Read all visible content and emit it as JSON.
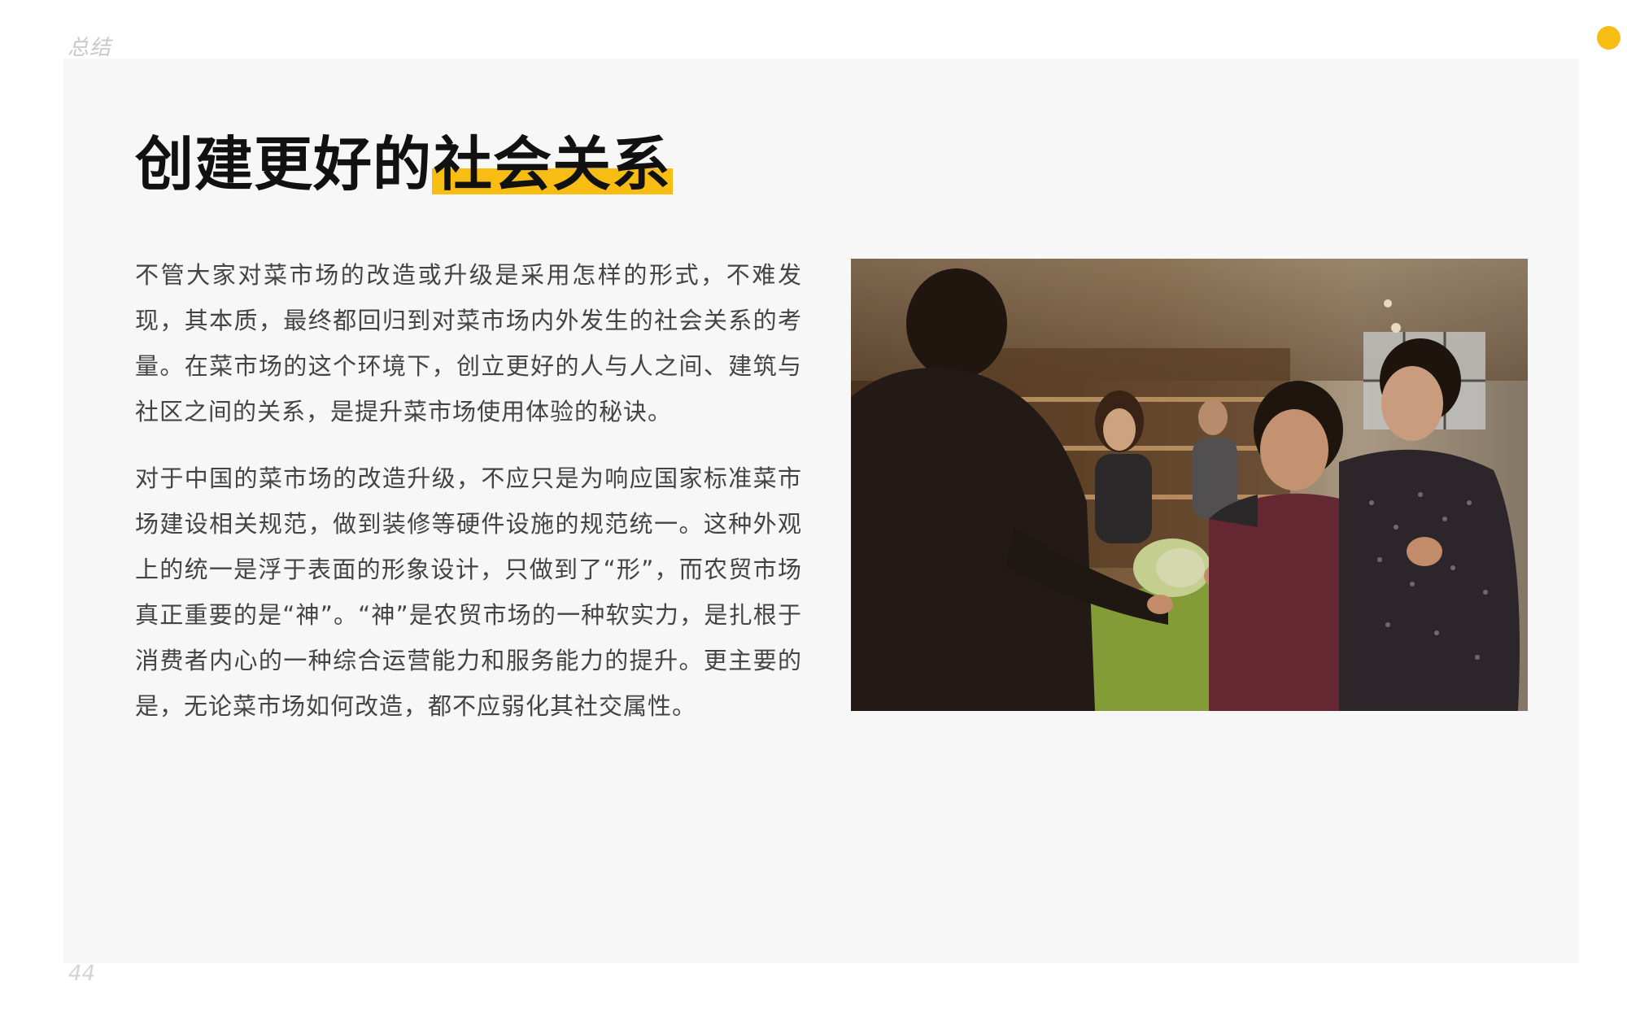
{
  "header": {
    "section_label": "总结",
    "accent_color": "#f7bd12"
  },
  "title": {
    "plain": "创建更好的",
    "highlight": "社会关系"
  },
  "paragraphs": [
    "不管大家对菜市场的改造或升级是采用怎样的形式，不难发现，其本质，最终都回归到对菜市场内外发生的社会关系的考量。在菜市场的这个环境下，创立更好的人与人之间、建筑与社区之间的关系，是提升菜市场使用体验的秘诀。",
    "对于中国的菜市场的改造升级，不应只是为响应国家标准菜市场建设相关规范，做到装修等硬件设施的规范统一。这种外观上的统一是浮于表面的形象设计，只做到了“形”，而农贸市场真正重要的是“神”。“神”是农贸市场的一种软实力，是扎根于消费者内心的一种综合运营能力和服务能力的提升。更主要的是，无论菜市场如何改造，都不应弱化其社交属性。"
  ],
  "photo": {
    "icon": "market-photo-icon"
  },
  "footer": {
    "page_number": "44"
  }
}
